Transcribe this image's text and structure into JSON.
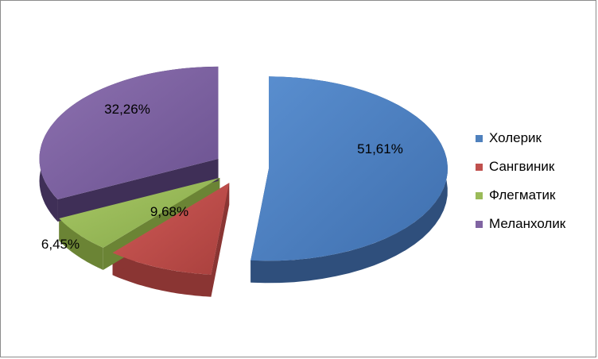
{
  "chart_data": {
    "type": "pie",
    "title": "",
    "categories": [
      "Холерик",
      "Сангвиник",
      "Флегматик",
      "Меланхолик"
    ],
    "values": [
      51.61,
      9.68,
      6.45,
      32.26
    ],
    "labels": [
      "51,61%",
      "9,68%",
      "6,45%",
      "32,26%"
    ],
    "colors": [
      "#4F81BD",
      "#C0504D",
      "#9BBB59",
      "#8064A2"
    ],
    "legend_position": "right",
    "style": "3d-exploded"
  }
}
